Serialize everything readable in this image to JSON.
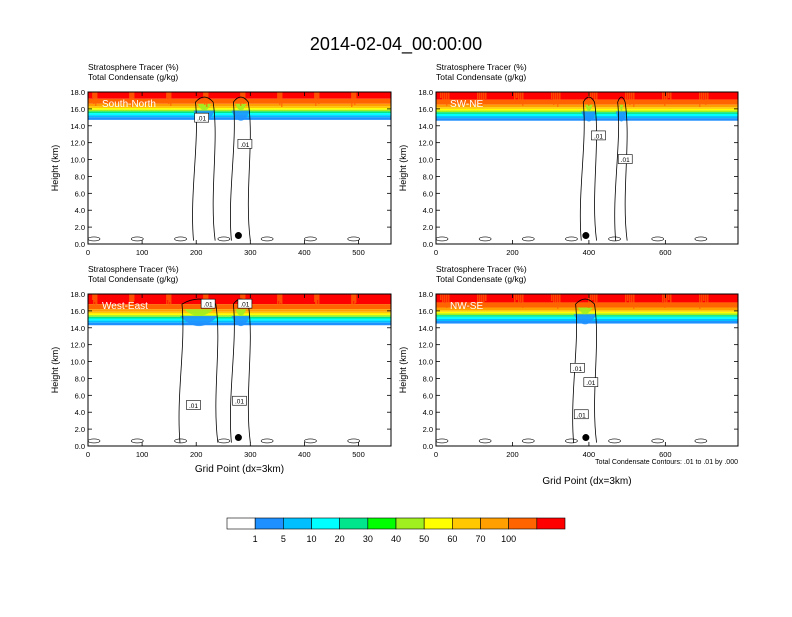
{
  "title": "2014-02-04_00:00:00",
  "legend": {
    "labels": [
      "1",
      "5",
      "10",
      "20",
      "30",
      "40",
      "50",
      "60",
      "70",
      "100"
    ],
    "colors": [
      "#ffffff",
      "#1e90ff",
      "#00bfff",
      "#00ffff",
      "#00e68c",
      "#00ff00",
      "#a0f020",
      "#ffff00",
      "#ffc800",
      "#ffa000",
      "#ff6400",
      "#ff0000"
    ]
  },
  "footnote": "Total Condensate Contours: .01 to .01 by .000",
  "chart_data": [
    {
      "type": "contour",
      "panel": "South-North",
      "title_line1": "Stratosphere Tracer   (%)",
      "title_line2": "Total Condensate   (g/kg)",
      "ylabel": "Height (km)",
      "xlabel": "",
      "xlim": [
        0,
        560
      ],
      "ylim": [
        0,
        18
      ],
      "xticks": [
        "0",
        "100",
        "200",
        "300",
        "400",
        "500"
      ],
      "xtick_values": [
        0,
        100,
        200,
        300,
        400,
        500
      ],
      "yticks": [
        "0.0",
        "2.0",
        "4.0",
        "6.0",
        "8.0",
        "10.0",
        "12.0",
        "14.0",
        "16.0",
        "18.0"
      ],
      "contour_labels": [
        ".01",
        ".01"
      ],
      "contour_label_pos": [
        [
          210,
          14.9
        ],
        [
          290,
          11.8
        ]
      ],
      "tropopause_km": 15.6,
      "marker_x": 278,
      "marker_y": 1.0,
      "columns": [
        [
          195,
          235
        ],
        [
          265,
          300
        ]
      ]
    },
    {
      "type": "contour",
      "panel": "SW-NE",
      "title_line1": "Stratosphere Tracer   (%)",
      "title_line2": "Total Condensate   (g/kg)",
      "ylabel": "Height (km)",
      "xlabel": "",
      "xlim": [
        0,
        790
      ],
      "ylim": [
        0,
        18
      ],
      "xticks": [
        "0",
        "200",
        "400",
        "600"
      ],
      "xtick_values": [
        0,
        200,
        400,
        600
      ],
      "yticks": [
        "0.0",
        "2.0",
        "4.0",
        "6.0",
        "8.0",
        "10.0",
        "12.0",
        "14.0",
        "16.0",
        "18.0"
      ],
      "contour_labels": [
        ".01",
        ".01"
      ],
      "contour_label_pos": [
        [
          425,
          12.8
        ],
        [
          495,
          10.0
        ]
      ],
      "tropopause_km": 15.5,
      "marker_x": 392,
      "marker_y": 1.0,
      "columns": [
        [
          380,
          420
        ],
        [
          470,
          500
        ]
      ]
    },
    {
      "type": "contour",
      "panel": "West-East",
      "title_line1": "Stratosphere Tracer   (%)",
      "title_line2": "Total Condensate   (g/kg)",
      "ylabel": "Height (km)",
      "xlabel": "Grid Point (dx=3km)",
      "xlim": [
        0,
        560
      ],
      "ylim": [
        0,
        18
      ],
      "xticks": [
        "0",
        "100",
        "200",
        "300",
        "400",
        "500"
      ],
      "xtick_values": [
        0,
        100,
        200,
        300,
        400,
        500
      ],
      "yticks": [
        "0.0",
        "2.0",
        "4.0",
        "6.0",
        "8.0",
        "10.0",
        "12.0",
        "14.0",
        "16.0",
        "18.0"
      ],
      "contour_labels": [
        ".01",
        ".01",
        ".01",
        ".01"
      ],
      "contour_label_pos": [
        [
          222,
          16.8
        ],
        [
          290,
          16.8
        ],
        [
          195,
          4.8
        ],
        [
          280,
          5.3
        ]
      ],
      "tropopause_km": 15.2,
      "marker_x": 278,
      "marker_y": 1.0,
      "columns": [
        [
          170,
          240
        ],
        [
          265,
          300
        ]
      ]
    },
    {
      "type": "contour",
      "panel": "NW-SE",
      "title_line1": "Stratosphere Tracer   (%)",
      "title_line2": "Total Condensate   (g/kg)",
      "ylabel": "Height (km)",
      "xlabel": "Grid Point (dx=3km)",
      "xlim": [
        0,
        790
      ],
      "ylim": [
        0,
        18
      ],
      "xticks": [
        "0",
        "200",
        "400",
        "600"
      ],
      "xtick_values": [
        0,
        200,
        400,
        600
      ],
      "yticks": [
        "0.0",
        "2.0",
        "4.0",
        "6.0",
        "8.0",
        "10.0",
        "12.0",
        "14.0",
        "16.0",
        "18.0"
      ],
      "contour_labels": [
        ".01",
        ".01",
        ".01"
      ],
      "contour_label_pos": [
        [
          370,
          9.2
        ],
        [
          405,
          7.5
        ],
        [
          380,
          3.7
        ]
      ],
      "tropopause_km": 15.4,
      "marker_x": 392,
      "marker_y": 1.0,
      "columns": [
        [
          360,
          420
        ]
      ]
    }
  ]
}
